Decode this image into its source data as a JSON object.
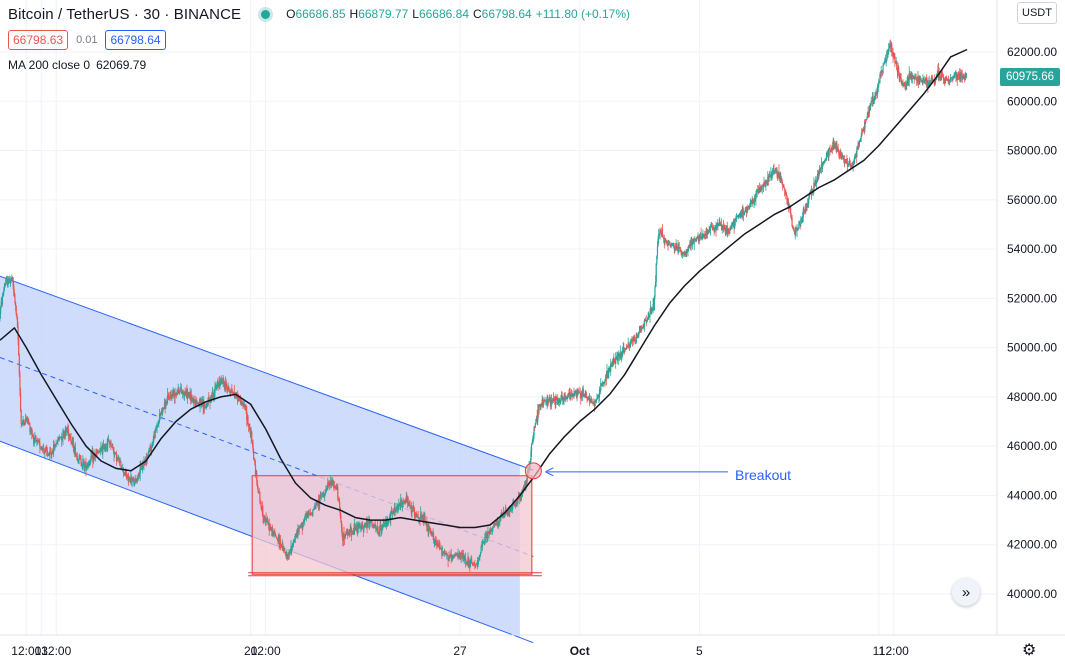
{
  "header": {
    "title": "Bitcoin / TetherUS · 30 · BINANCE",
    "open_label": "O",
    "open": "66686.85",
    "high_label": "H",
    "high": "66879.77",
    "low_label": "L",
    "low": "66686.84",
    "close_label": "C",
    "close": "66798.64",
    "change": "+111.80 (+0.17%)",
    "bid": "66798.63",
    "spread": "0.01",
    "ask": "66798.64",
    "indicator_label": "MA 200 close 0",
    "indicator_value": "62069.79"
  },
  "currency_button": "USDT",
  "last_price": "60975.66",
  "annotation": "Breakout",
  "colors": {
    "up": "#26a69a",
    "down": "#ef5350",
    "channel_line": "#2962ff",
    "channel_fill": "#c7d6fb",
    "range_fill": "#f4c7d2",
    "range_border": "#e53935",
    "ma_line": "#131722"
  },
  "chart_data": {
    "type": "candlestick",
    "symbol": "BTCUSDT",
    "interval": "30",
    "exchange": "BINANCE",
    "ylim": [
      39000,
      63200
    ],
    "y_ticks": [
      40000,
      42000,
      44000,
      46000,
      48000,
      50000,
      52000,
      54000,
      56000,
      58000,
      60000,
      62000
    ],
    "y_tick_labels": [
      "40000.00",
      "42000.00",
      "44000.00",
      "46000.00",
      "48000.00",
      "50000.00",
      "52000.00",
      "54000.00",
      "56000.00",
      "58000.00",
      "60000.00",
      "62000.00"
    ],
    "x_tick_labels": [
      "12:00",
      "13",
      "12:00",
      "20",
      "12:00",
      "27",
      "Oct",
      "5",
      "11",
      "12:00"
    ],
    "x_tick_days": [
      12.5,
      13,
      13.5,
      20,
      20.5,
      27,
      31,
      35,
      41,
      41.5
    ],
    "x_range_days": [
      11.62,
      44.95
    ],
    "price_path": [
      [
        11.62,
        51300
      ],
      [
        11.8,
        52600
      ],
      [
        12.05,
        52800
      ],
      [
        12.22,
        51000
      ],
      [
        12.35,
        46900
      ],
      [
        12.55,
        47100
      ],
      [
        12.8,
        46200
      ],
      [
        13.0,
        46000
      ],
      [
        13.3,
        45600
      ],
      [
        13.6,
        46300
      ],
      [
        13.9,
        46700
      ],
      [
        14.2,
        45600
      ],
      [
        14.5,
        45200
      ],
      [
        14.8,
        45600
      ],
      [
        15.0,
        45800
      ],
      [
        15.3,
        46200
      ],
      [
        15.6,
        45400
      ],
      [
        15.9,
        44700
      ],
      [
        16.15,
        44500
      ],
      [
        16.4,
        45200
      ],
      [
        16.7,
        46000
      ],
      [
        17.0,
        47300
      ],
      [
        17.3,
        48000
      ],
      [
        17.6,
        48300
      ],
      [
        17.9,
        48100
      ],
      [
        18.2,
        47800
      ],
      [
        18.5,
        47600
      ],
      [
        18.8,
        48200
      ],
      [
        19.0,
        48700
      ],
      [
        19.3,
        48300
      ],
      [
        19.6,
        48000
      ],
      [
        19.85,
        47500
      ],
      [
        20.05,
        46300
      ],
      [
        20.2,
        44800
      ],
      [
        20.4,
        43300
      ],
      [
        20.7,
        42600
      ],
      [
        21.0,
        42100
      ],
      [
        21.25,
        41400
      ],
      [
        21.5,
        42300
      ],
      [
        21.8,
        43000
      ],
      [
        22.1,
        43400
      ],
      [
        22.4,
        44000
      ],
      [
        22.7,
        44500
      ],
      [
        22.9,
        44300
      ],
      [
        23.1,
        42300
      ],
      [
        23.4,
        42600
      ],
      [
        23.7,
        42700
      ],
      [
        24.0,
        42900
      ],
      [
        24.3,
        42500
      ],
      [
        24.6,
        43000
      ],
      [
        24.9,
        43500
      ],
      [
        25.2,
        43800
      ],
      [
        25.5,
        43300
      ],
      [
        25.8,
        43000
      ],
      [
        26.1,
        42300
      ],
      [
        26.4,
        41800
      ],
      [
        26.7,
        41400
      ],
      [
        27.0,
        41600
      ],
      [
        27.3,
        41300
      ],
      [
        27.55,
        41100
      ],
      [
        27.8,
        42100
      ],
      [
        28.1,
        42700
      ],
      [
        28.4,
        43100
      ],
      [
        28.7,
        43400
      ],
      [
        29.0,
        43900
      ],
      [
        29.2,
        44400
      ],
      [
        29.35,
        45300
      ],
      [
        29.5,
        46800
      ],
      [
        29.7,
        47700
      ],
      [
        30.0,
        47900
      ],
      [
        30.3,
        47900
      ],
      [
        30.6,
        48000
      ],
      [
        30.9,
        48200
      ],
      [
        31.2,
        48100
      ],
      [
        31.5,
        47700
      ],
      [
        31.8,
        48600
      ],
      [
        32.1,
        49300
      ],
      [
        32.4,
        49800
      ],
      [
        32.7,
        50100
      ],
      [
        33.0,
        50600
      ],
      [
        33.3,
        51200
      ],
      [
        33.5,
        51700
      ],
      [
        33.65,
        54800
      ],
      [
        33.9,
        54300
      ],
      [
        34.2,
        54100
      ],
      [
        34.5,
        53800
      ],
      [
        34.8,
        54300
      ],
      [
        35.1,
        54500
      ],
      [
        35.4,
        54800
      ],
      [
        35.7,
        55000
      ],
      [
        36.0,
        54700
      ],
      [
        36.3,
        55300
      ],
      [
        36.6,
        55600
      ],
      [
        36.9,
        56200
      ],
      [
        37.2,
        56600
      ],
      [
        37.5,
        57200
      ],
      [
        37.75,
        56900
      ],
      [
        38.0,
        55800
      ],
      [
        38.2,
        54600
      ],
      [
        38.4,
        55100
      ],
      [
        38.6,
        55800
      ],
      [
        38.9,
        56700
      ],
      [
        39.2,
        57600
      ],
      [
        39.5,
        58300
      ],
      [
        39.8,
        57700
      ],
      [
        40.1,
        57300
      ],
      [
        40.4,
        58500
      ],
      [
        40.7,
        59700
      ],
      [
        40.95,
        60400
      ],
      [
        41.2,
        61600
      ],
      [
        41.4,
        62300
      ],
      [
        41.6,
        61400
      ],
      [
        41.85,
        60600
      ],
      [
        42.1,
        61000
      ],
      [
        42.4,
        60900
      ],
      [
        42.7,
        60700
      ],
      [
        43.0,
        61100
      ],
      [
        43.3,
        60800
      ],
      [
        43.6,
        61000
      ],
      [
        43.95,
        60975
      ]
    ],
    "ma_200": [
      [
        11.62,
        50300
      ],
      [
        12.1,
        50800
      ],
      [
        12.5,
        50000
      ],
      [
        13.0,
        48900
      ],
      [
        13.5,
        47900
      ],
      [
        14.0,
        46900
      ],
      [
        14.5,
        46000
      ],
      [
        15.0,
        45400
      ],
      [
        15.5,
        45100
      ],
      [
        16.0,
        45000
      ],
      [
        16.5,
        45400
      ],
      [
        17.0,
        46300
      ],
      [
        17.5,
        47000
      ],
      [
        18.0,
        47500
      ],
      [
        18.5,
        47800
      ],
      [
        19.0,
        48000
      ],
      [
        19.5,
        48100
      ],
      [
        20.0,
        47700
      ],
      [
        20.5,
        46700
      ],
      [
        21.0,
        45500
      ],
      [
        21.5,
        44500
      ],
      [
        22.0,
        43900
      ],
      [
        22.5,
        43600
      ],
      [
        23.0,
        43400
      ],
      [
        23.5,
        43100
      ],
      [
        24.0,
        43000
      ],
      [
        24.5,
        43000
      ],
      [
        25.0,
        43100
      ],
      [
        25.5,
        43000
      ],
      [
        26.0,
        42900
      ],
      [
        26.5,
        42800
      ],
      [
        27.0,
        42700
      ],
      [
        27.5,
        42700
      ],
      [
        28.0,
        42800
      ],
      [
        28.5,
        43300
      ],
      [
        29.0,
        44000
      ],
      [
        29.5,
        44800
      ],
      [
        30.0,
        45700
      ],
      [
        30.5,
        46400
      ],
      [
        31.0,
        47000
      ],
      [
        31.5,
        47500
      ],
      [
        32.0,
        48100
      ],
      [
        32.5,
        48900
      ],
      [
        33.0,
        49900
      ],
      [
        33.5,
        50900
      ],
      [
        34.0,
        51800
      ],
      [
        34.5,
        52500
      ],
      [
        35.0,
        53100
      ],
      [
        35.5,
        53600
      ],
      [
        36.0,
        54100
      ],
      [
        36.5,
        54600
      ],
      [
        37.0,
        55000
      ],
      [
        37.5,
        55400
      ],
      [
        38.0,
        55700
      ],
      [
        38.5,
        56100
      ],
      [
        39.0,
        56500
      ],
      [
        39.5,
        56800
      ],
      [
        40.0,
        57200
      ],
      [
        40.5,
        57600
      ],
      [
        41.0,
        58200
      ],
      [
        41.5,
        58900
      ],
      [
        42.0,
        59600
      ],
      [
        42.5,
        60300
      ],
      [
        43.0,
        61100
      ],
      [
        43.4,
        61800
      ],
      [
        43.95,
        62100
      ]
    ],
    "channel": {
      "upper": [
        [
          11.62,
          52900
        ],
        [
          29.5,
          45000
        ]
      ],
      "lower": [
        [
          11.62,
          46200
        ],
        [
          29.5,
          38000
        ]
      ],
      "mid": [
        [
          11.62,
          49600
        ],
        [
          29.5,
          41500
        ]
      ],
      "end_day": 29.0
    },
    "range_box": {
      "x": [
        20.05,
        29.4
      ],
      "y": [
        40800,
        44800
      ]
    },
    "breakout_point": {
      "day": 29.45,
      "price": 45000
    }
  }
}
